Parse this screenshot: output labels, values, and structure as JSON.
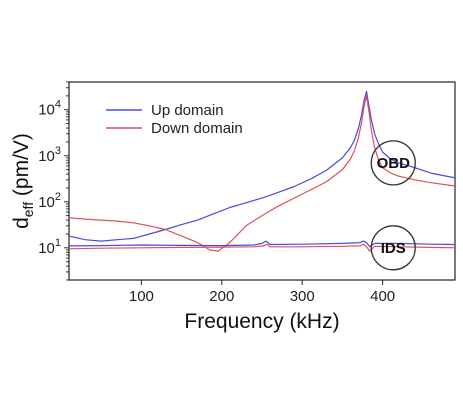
{
  "chart_data": {
    "type": "line",
    "xlabel": "Frequency (kHz)",
    "ylabel_main": "d",
    "ylabel_sub": "eff",
    "ylabel_units": " (pm/V)",
    "xlim": [
      10,
      490
    ],
    "ylim": [
      2,
      40000
    ],
    "yscale": "log",
    "x_ticks": [
      100,
      200,
      300,
      400
    ],
    "x_tick_labels": [
      "100",
      "200",
      "300",
      "400"
    ],
    "y_ticks": [
      10,
      100,
      1000,
      10000
    ],
    "y_tick_labels": [
      {
        "base": "10",
        "exp": "1"
      },
      {
        "base": "10",
        "exp": "2"
      },
      {
        "base": "10",
        "exp": "3"
      },
      {
        "base": "10",
        "exp": "4"
      }
    ],
    "grid": false,
    "legend_position": "top-left",
    "callouts": [
      {
        "label": "OBD",
        "x": 458,
        "y": 700
      },
      {
        "label": "IDS",
        "x": 458,
        "y": 10
      }
    ],
    "series": [
      {
        "name": "Up domain",
        "color": "#4a4ae0",
        "group": "OBD",
        "x": [
          10,
          30,
          50,
          70,
          90,
          110,
          130,
          150,
          170,
          190,
          210,
          230,
          250,
          270,
          290,
          310,
          330,
          350,
          360,
          365,
          370,
          374,
          377,
          380,
          383,
          386,
          390,
          395,
          400,
          410,
          420,
          440,
          460,
          490
        ],
        "y": [
          18,
          15,
          14,
          15,
          16,
          20,
          25,
          32,
          40,
          55,
          75,
          95,
          120,
          160,
          215,
          310,
          480,
          900,
          1500,
          2200,
          4000,
          8000,
          16000,
          25000,
          12000,
          6000,
          3000,
          1800,
          1200,
          850,
          700,
          550,
          420,
          330
        ]
      },
      {
        "name": "Down domain",
        "color": "#e0505a",
        "group": "OBD",
        "x": [
          10,
          30,
          50,
          70,
          90,
          110,
          130,
          150,
          170,
          185,
          195,
          205,
          215,
          230,
          250,
          270,
          290,
          310,
          330,
          350,
          360,
          365,
          370,
          374,
          377,
          380,
          383,
          386,
          390,
          395,
          400,
          410,
          420,
          440,
          460,
          490
        ],
        "y": [
          45,
          42,
          40,
          38,
          35,
          30,
          25,
          18,
          13,
          9,
          8.5,
          11,
          16,
          30,
          50,
          80,
          120,
          180,
          270,
          500,
          850,
          1300,
          2500,
          5500,
          12000,
          20000,
          9000,
          3500,
          1500,
          800,
          550,
          420,
          360,
          300,
          260,
          220
        ]
      },
      {
        "name": "Up domain IDS",
        "color": "#4a4ae0",
        "group": "IDS",
        "x": [
          10,
          50,
          100,
          150,
          200,
          240,
          250,
          255,
          260,
          300,
          350,
          372,
          376,
          380,
          384,
          390,
          420,
          460,
          490
        ],
        "y": [
          11,
          11.2,
          11.5,
          11.3,
          11.2,
          11.5,
          12.5,
          14,
          11.8,
          12,
          12.5,
          13,
          14,
          13,
          10.5,
          12.5,
          12.5,
          12,
          11.8
        ]
      },
      {
        "name": "Down domain IDS",
        "color": "#e0505a",
        "group": "IDS",
        "x": [
          10,
          50,
          100,
          150,
          200,
          240,
          252,
          256,
          260,
          300,
          350,
          372,
          376,
          380,
          384,
          390,
          420,
          460,
          490
        ],
        "y": [
          9.5,
          9.8,
          10,
          10.2,
          10.3,
          10.5,
          11,
          12,
          10.5,
          10.5,
          10.8,
          11,
          12,
          10.5,
          8.5,
          10.8,
          10.5,
          10.2,
          10
        ]
      }
    ],
    "legend": [
      {
        "label": "Up domain",
        "color": "#4a4ae0"
      },
      {
        "label": "Down domain",
        "color": "#e0505a"
      }
    ]
  }
}
